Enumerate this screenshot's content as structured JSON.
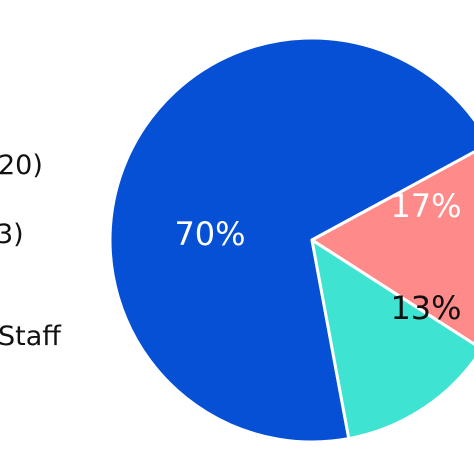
{
  "chart_data": {
    "type": "pie",
    "title": "",
    "slices": [
      {
        "label": "70%",
        "value": 70,
        "color": "#0650d6",
        "label_color": "#ffffff"
      },
      {
        "label": "17%",
        "value": 17,
        "color": "#ff8a8a",
        "label_color": "#ffffff"
      },
      {
        "label": "13%",
        "value": 13,
        "color": "#3fe3d2",
        "label_color": "#111111"
      }
    ],
    "legend": {
      "placement": "left (partially cropped)",
      "entries": [
        "20)",
        "3)",
        "Staff"
      ]
    },
    "slice_border_color": "#ffffff"
  }
}
